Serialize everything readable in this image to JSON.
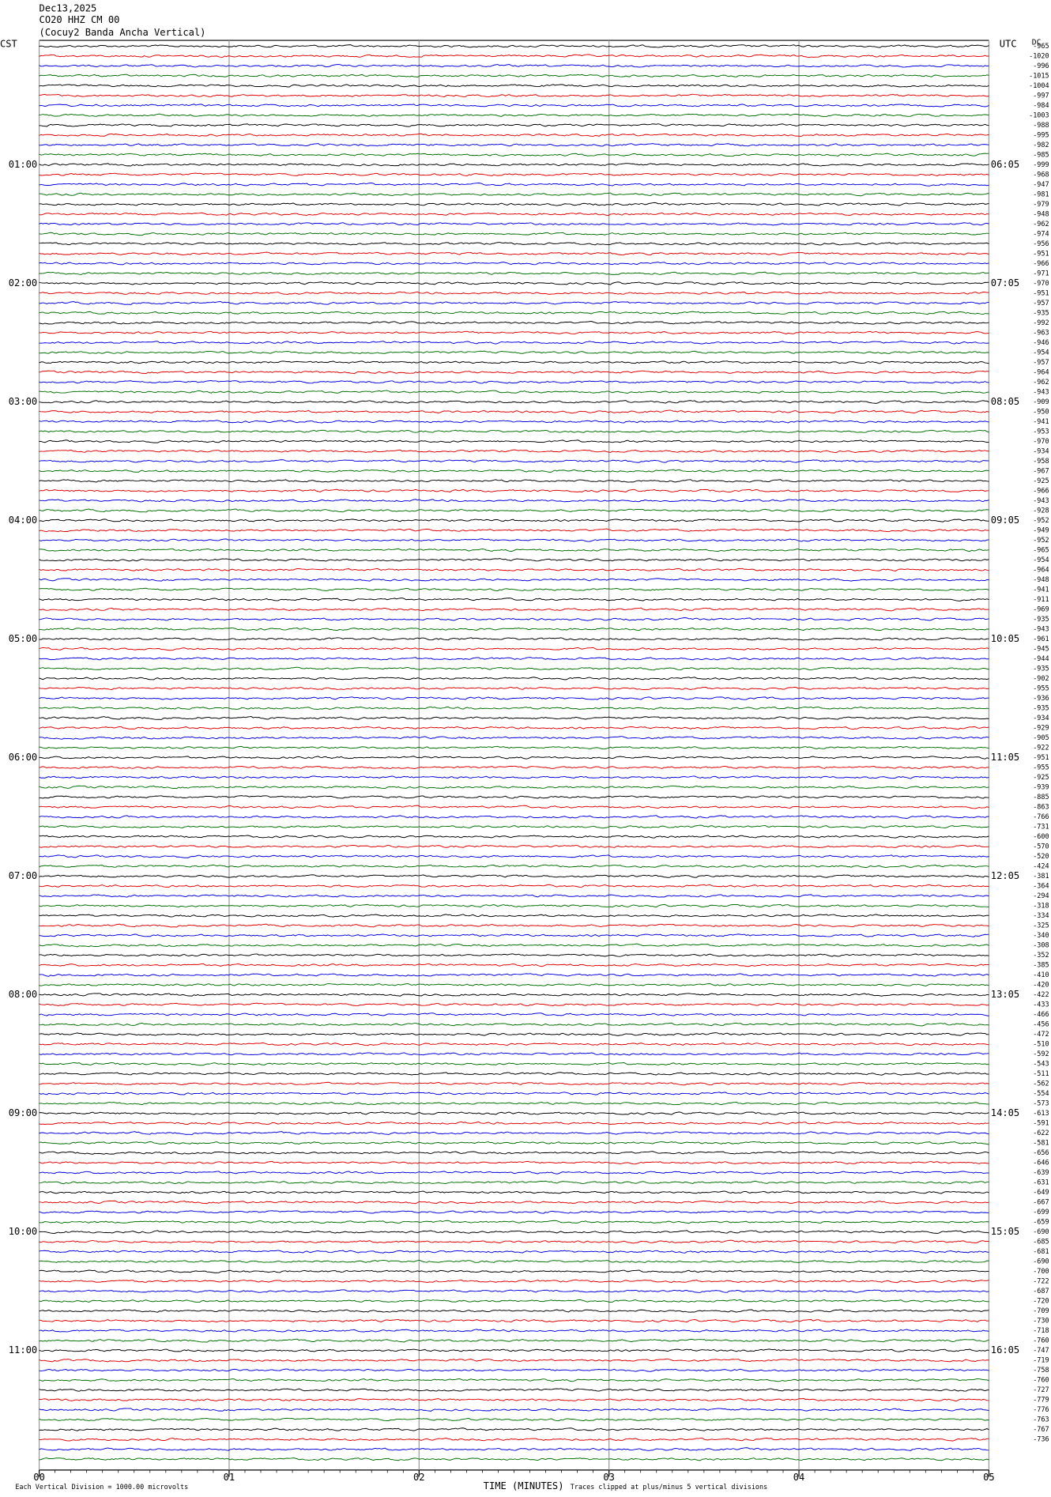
{
  "chart_data": {
    "type": "helicorder",
    "title": [
      "Dec13,2025",
      "CO20 HHZ CM 00",
      "(Cocuy2 Banda Ancha Vertical)"
    ],
    "left_axis_label": "CST",
    "right_axis_label": "UTC",
    "corner_label": "DC",
    "cst_labels": [
      "01:00",
      "02:00",
      "03:00",
      "04:00",
      "05:00",
      "06:00",
      "07:00",
      "08:00",
      "09:00",
      "10:00",
      "11:00"
    ],
    "utc_labels": [
      "06:05",
      "07:05",
      "08:05",
      "09:05",
      "10:05",
      "11:05",
      "12:05",
      "13:05",
      "14:05",
      "15:05",
      "16:05"
    ],
    "trace_offsets": [
      -965,
      -1020,
      -996,
      -1015,
      -1004,
      -997,
      -984,
      -1003,
      -988,
      -995,
      -982,
      -985,
      -999,
      -968,
      -947,
      -981,
      -979,
      -948,
      -962,
      -974,
      -956,
      -951,
      -966,
      -971,
      -970,
      -951,
      -957,
      -935,
      -992,
      -963,
      -946,
      -954,
      -957,
      -964,
      -962,
      -943,
      -909,
      -950,
      -941,
      -953,
      -970,
      -934,
      -958,
      -967,
      -925,
      -966,
      -943,
      -928,
      -952,
      -949,
      -952,
      -965,
      -954,
      -964,
      -948,
      -941,
      -911,
      -969,
      -935,
      -943,
      -961,
      -945,
      -944,
      -935,
      -902,
      -955,
      -936,
      -935,
      -934,
      -929,
      -905,
      -922,
      -951,
      -955,
      -925,
      -939,
      -885,
      -863,
      -766,
      -731,
      -600,
      -570,
      -520,
      -424,
      -381,
      -364,
      -294,
      -318,
      -334,
      -325,
      -340,
      -308,
      -352,
      -385,
      -410,
      -420,
      -422,
      -433,
      -466,
      -456,
      -472,
      -510,
      -592,
      -543,
      -511,
      -562,
      -554,
      -573,
      -613,
      -591,
      -622,
      -581,
      -656,
      -646,
      -639,
      -631,
      -649,
      -667,
      -699,
      -659,
      -690,
      -685,
      -681,
      -690,
      -700,
      -722,
      -687,
      -720,
      -709,
      -730,
      -718,
      -760,
      -747,
      -719,
      -758,
      -760,
      -727,
      -779,
      -776,
      -763,
      -767,
      -736
    ],
    "colors": [
      "#000000",
      "#e00000",
      "#0000e0",
      "#007000"
    ],
    "xlim": [
      0,
      5
    ],
    "xticks": [
      {
        "value": 0,
        "label": "00"
      },
      {
        "value": 1,
        "label": "01"
      },
      {
        "value": 2,
        "label": "02"
      },
      {
        "value": 3,
        "label": "03"
      },
      {
        "value": 4,
        "label": "04"
      },
      {
        "value": 5,
        "label": "05"
      }
    ],
    "x_label": "TIME (MINUTES)",
    "footer_left": "Each Vertical Division = 1000.00 microvolts",
    "footer_right": "Traces clipped at plus/minus 5 vertical divisions",
    "grid": true
  }
}
